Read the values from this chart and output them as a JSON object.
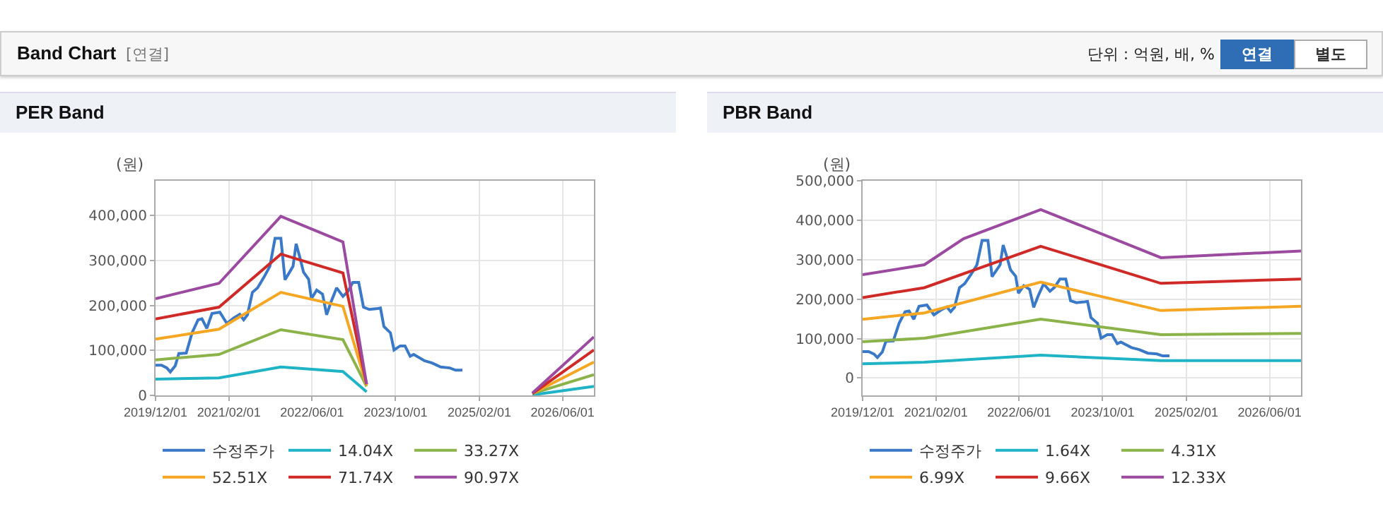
{
  "chart_data": [
    {
      "type": "other",
      "title": "Band Chart",
      "annotations": [
        "[연결]",
        "단위 : 억원, 배, %",
        "연결",
        "별도"
      ]
    },
    {
      "type": "line",
      "title": "PER Band",
      "ylabel": "(원)",
      "grid": true,
      "legend": "bottom",
      "marker": "none",
      "line_style": "solid",
      "xlim": [
        "2019-12-01",
        "2026-12-01"
      ],
      "xticks": [
        {
          "value": "2019-12-01",
          "label": "2019/12/01"
        },
        {
          "value": "2021-02-01",
          "label": "2021/02/01"
        },
        {
          "value": "2022-06-01",
          "label": "2022/06/01"
        },
        {
          "value": "2023-10-01",
          "label": "2023/10/01"
        },
        {
          "value": "2025-02-01",
          "label": "2025/02/01"
        },
        {
          "value": "2026-06-01",
          "label": "2026/06/01"
        }
      ],
      "ylim": [
        0,
        477000
      ],
      "yticks": [
        0,
        {
          "value": 100000,
          "label": "100,000"
        },
        {
          "value": 200000,
          "label": "200,000"
        },
        {
          "value": 300000,
          "label": "300,000"
        },
        {
          "value": 400000,
          "label": "400,000"
        }
      ],
      "series": [
        {
          "name": "수정주가",
          "color": "#3a78c8",
          "x": [
            "2019-12-01",
            "2020-01-05",
            "2020-02-05",
            "2020-02-25",
            "2020-03-25",
            "2020-04-15",
            "2020-05-28",
            "2020-07-01",
            "2020-08-05",
            "2020-08-28",
            "2020-09-25",
            "2020-10-25",
            "2020-12-10",
            "2021-01-20",
            "2021-03-01",
            "2021-04-05",
            "2021-04-28",
            "2021-05-20",
            "2021-06-18",
            "2021-07-18",
            "2021-08-25",
            "2021-09-28",
            "2021-10-28",
            "2021-12-01",
            "2021-12-25",
            "2022-01-18",
            "2022-02-10",
            "2022-02-28",
            "2022-03-20",
            "2022-04-12",
            "2022-05-12",
            "2022-05-28",
            "2022-06-28",
            "2022-08-01",
            "2022-08-25",
            "2022-09-18",
            "2022-10-22",
            "2022-11-28",
            "2022-12-25",
            "2023-01-25",
            "2023-02-28",
            "2023-03-28",
            "2023-05-01",
            "2023-06-18",
            "2023-07-05",
            "2023-07-25",
            "2023-09-01",
            "2023-09-22",
            "2023-10-28",
            "2023-11-25",
            "2023-12-25",
            "2024-01-15",
            "2024-03-18",
            "2024-05-01",
            "2024-06-20",
            "2024-08-12",
            "2024-09-15",
            "2024-10-25"
          ],
          "values": [
            67000,
            67000,
            61000,
            52000,
            66000,
            93000,
            94000,
            139000,
            168000,
            170000,
            149000,
            182000,
            185000,
            160000,
            172000,
            180000,
            168000,
            179000,
            229000,
            239000,
            263000,
            287000,
            349000,
            349000,
            257000,
            272000,
            287000,
            337000,
            309000,
            274000,
            258000,
            215000,
            234000,
            225000,
            179000,
            206000,
            239000,
            220000,
            230000,
            251000,
            251000,
            196000,
            191000,
            193000,
            194000,
            153000,
            139000,
            101000,
            110000,
            110000,
            87000,
            91000,
            77000,
            72000,
            63000,
            61000,
            56000,
            56000
          ]
        },
        {
          "name": "14.04X",
          "color": "#1fb3c6",
          "x": [
            "2019-12-01",
            "2020-12-05",
            "2021-12-01",
            "2022-11-28",
            "2023-04-15",
            "2024-06-01",
            "2025-12-07",
            "2026-12-01"
          ],
          "values": [
            36000,
            39000,
            63000,
            53000,
            8000,
            null,
            1000,
            20000
          ]
        },
        {
          "name": "33.27X",
          "color": "#8cb34a",
          "x": [
            "2019-12-01",
            "2020-12-05",
            "2021-12-01",
            "2022-11-28",
            "2023-04-15",
            "2024-06-01",
            "2025-12-07",
            "2026-12-01"
          ],
          "values": [
            79000,
            91000,
            146000,
            124000,
            20000,
            null,
            4000,
            46000
          ]
        },
        {
          "name": "52.51X",
          "color": "#f5a623",
          "x": [
            "2019-12-01",
            "2020-12-05",
            "2021-12-01",
            "2022-11-28",
            "2023-04-15",
            "2024-06-01",
            "2025-12-07",
            "2026-12-01"
          ],
          "values": [
            125000,
            147000,
            229000,
            198000,
            22000,
            null,
            4000,
            74000
          ]
        },
        {
          "name": "71.74X",
          "color": "#cf2a27",
          "x": [
            "2019-12-01",
            "2020-12-05",
            "2021-12-01",
            "2022-11-28",
            "2023-04-15",
            "2024-06-01",
            "2025-12-07",
            "2026-12-01"
          ],
          "values": [
            170000,
            196000,
            314000,
            272000,
            25000,
            null,
            4000,
            101000
          ]
        },
        {
          "name": "90.97X",
          "color": "#9b4aa0",
          "x": [
            "2019-12-01",
            "2020-12-05",
            "2021-12-01",
            "2022-11-28",
            "2023-04-15",
            "2024-06-01",
            "2025-12-07",
            "2026-12-01"
          ],
          "values": [
            215000,
            249000,
            398000,
            341000,
            25000,
            null,
            5000,
            130000
          ]
        }
      ]
    },
    {
      "type": "line",
      "title": "PBR Band",
      "ylabel": "(원)",
      "grid": true,
      "legend": "bottom",
      "marker": "none",
      "line_style": "solid",
      "xlim": [
        "2019-12-01",
        "2026-12-01"
      ],
      "xticks": [
        {
          "value": "2019-12-01",
          "label": "2019/12/01"
        },
        {
          "value": "2021-02-01",
          "label": "2021/02/01"
        },
        {
          "value": "2022-06-01",
          "label": "2022/06/01"
        },
        {
          "value": "2023-10-01",
          "label": "2023/10/01"
        },
        {
          "value": "2025-02-01",
          "label": "2025/02/01"
        },
        {
          "value": "2026-06-01",
          "label": "2026/06/01"
        }
      ],
      "ylim": [
        -44000,
        500000
      ],
      "yticks": [
        0,
        {
          "value": 100000,
          "label": "100,000"
        },
        {
          "value": 200000,
          "label": "200,000"
        },
        {
          "value": 300000,
          "label": "300,000"
        },
        {
          "value": 400000,
          "label": "400,000"
        },
        {
          "value": 500000,
          "label": "500,000"
        }
      ],
      "series": [
        {
          "name": "수정주가",
          "color": "#3a78c8",
          "x": [
            "2019-12-01",
            "2020-01-05",
            "2020-02-05",
            "2020-02-25",
            "2020-03-25",
            "2020-04-15",
            "2020-05-28",
            "2020-07-01",
            "2020-08-05",
            "2020-08-28",
            "2020-09-25",
            "2020-10-25",
            "2020-12-10",
            "2021-01-20",
            "2021-03-01",
            "2021-04-05",
            "2021-04-28",
            "2021-05-20",
            "2021-06-18",
            "2021-07-18",
            "2021-08-25",
            "2021-09-28",
            "2021-10-28",
            "2021-12-01",
            "2021-12-25",
            "2022-01-18",
            "2022-02-10",
            "2022-02-28",
            "2022-03-20",
            "2022-04-12",
            "2022-05-12",
            "2022-05-28",
            "2022-06-28",
            "2022-08-01",
            "2022-08-25",
            "2022-09-18",
            "2022-10-22",
            "2022-11-28",
            "2022-12-25",
            "2023-01-25",
            "2023-02-28",
            "2023-03-28",
            "2023-05-01",
            "2023-06-18",
            "2023-07-05",
            "2023-07-25",
            "2023-09-01",
            "2023-09-22",
            "2023-10-28",
            "2023-11-25",
            "2023-12-25",
            "2024-01-15",
            "2024-03-18",
            "2024-05-01",
            "2024-06-20",
            "2024-08-12",
            "2024-09-15",
            "2024-10-25"
          ],
          "values": [
            67000,
            67000,
            61000,
            52000,
            66000,
            93000,
            94000,
            139000,
            168000,
            170000,
            149000,
            182000,
            185000,
            160000,
            172000,
            180000,
            168000,
            179000,
            229000,
            239000,
            263000,
            287000,
            349000,
            349000,
            257000,
            272000,
            287000,
            337000,
            309000,
            274000,
            258000,
            215000,
            234000,
            225000,
            179000,
            206000,
            239000,
            220000,
            230000,
            251000,
            251000,
            196000,
            191000,
            193000,
            194000,
            153000,
            139000,
            101000,
            110000,
            110000,
            87000,
            91000,
            77000,
            72000,
            63000,
            61000,
            56000,
            56000
          ]
        },
        {
          "name": "1.64X",
          "color": "#1fb3c6",
          "x": [
            "2019-12-01",
            "2020-11-25",
            "2022-10-05",
            "2024-09-05",
            "2026-12-01"
          ],
          "values": [
            36000,
            40000,
            58000,
            44000,
            44000
          ]
        },
        {
          "name": "4.31X",
          "color": "#8cb34a",
          "x": [
            "2019-12-01",
            "2020-11-25",
            "2022-10-05",
            "2024-09-05",
            "2026-12-01"
          ],
          "values": [
            92000,
            101000,
            149000,
            110000,
            113000
          ]
        },
        {
          "name": "6.99X",
          "color": "#f5a623",
          "x": [
            "2019-12-01",
            "2020-11-25",
            "2022-10-05",
            "2024-09-05",
            "2026-12-01"
          ],
          "values": [
            149000,
            165000,
            243000,
            171000,
            182000
          ]
        },
        {
          "name": "9.66X",
          "color": "#cf2a27",
          "x": [
            "2019-12-01",
            "2020-11-25",
            "2022-10-05",
            "2024-09-05",
            "2026-12-01"
          ],
          "values": [
            204000,
            229000,
            334000,
            240000,
            251000
          ]
        },
        {
          "name": "12.33X",
          "color": "#9b4aa0",
          "x": [
            "2019-12-01",
            "2020-11-25",
            "2021-07-12",
            "2022-10-05",
            "2024-09-05",
            "2026-12-01"
          ],
          "values": [
            262000,
            287000,
            353000,
            427000,
            305000,
            322000
          ]
        }
      ]
    }
  ]
}
